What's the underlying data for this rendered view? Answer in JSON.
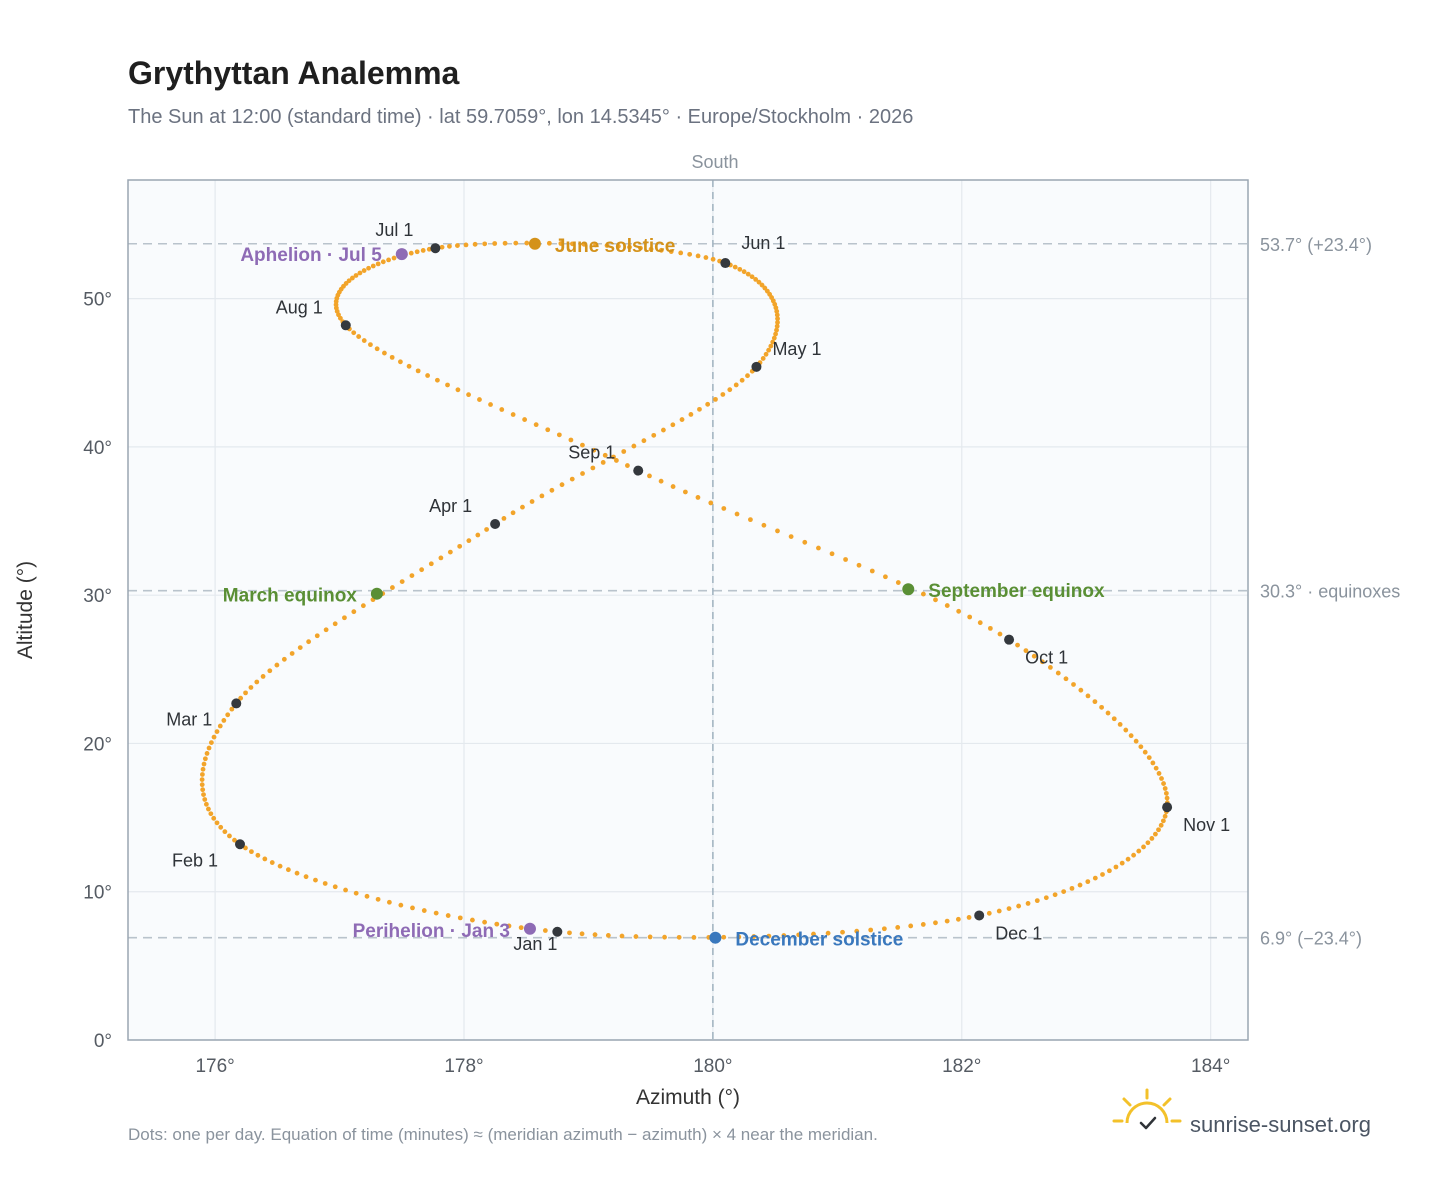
{
  "chart_data": {
    "type": "scatter",
    "title": "Grythyttan Analemma",
    "subtitle": "The Sun at 12:00 (standard time) · lat 59.7059°, lon 14.5345° · Europe/Stockholm · 2026",
    "xlabel": "Azimuth (°)",
    "ylabel": "Altitude (°)",
    "top_label": "South",
    "xlim": [
      175.3,
      184.3
    ],
    "ylim": [
      0,
      58
    ],
    "x_ticks": [
      176,
      178,
      180,
      182,
      184
    ],
    "y_ticks": [
      0,
      10,
      20,
      30,
      40,
      50
    ],
    "x_tick_labels": [
      "176°",
      "178°",
      "180°",
      "182°",
      "184°"
    ],
    "y_tick_labels": [
      "0°",
      "10°",
      "20°",
      "30°",
      "40°",
      "50°"
    ],
    "grid": true,
    "meridian_azimuth": 180,
    "reference_lines": [
      {
        "y": 53.7,
        "label": "53.7° (+23.4°)"
      },
      {
        "y": 30.3,
        "label": "30.3° · equinoxes"
      },
      {
        "y": 6.9,
        "label": "6.9° (−23.4°)"
      }
    ],
    "month_points": [
      {
        "label": "Jan 1",
        "az": 178.75,
        "alt": 7.3
      },
      {
        "label": "Feb 1",
        "az": 176.2,
        "alt": 13.2
      },
      {
        "label": "Mar 1",
        "az": 176.17,
        "alt": 22.7
      },
      {
        "label": "Apr 1",
        "az": 178.25,
        "alt": 34.8
      },
      {
        "label": "May 1",
        "az": 180.35,
        "alt": 45.4
      },
      {
        "label": "Jun 1",
        "az": 180.1,
        "alt": 52.4
      },
      {
        "label": "Jul 1",
        "az": 177.77,
        "alt": 53.4
      },
      {
        "label": "Aug 1",
        "az": 177.05,
        "alt": 48.2
      },
      {
        "label": "Sep 1",
        "az": 179.4,
        "alt": 38.4
      },
      {
        "label": "Oct 1",
        "az": 182.38,
        "alt": 27.0
      },
      {
        "label": "Nov 1",
        "az": 183.65,
        "alt": 15.7
      },
      {
        "label": "Dec 1",
        "az": 182.14,
        "alt": 8.4
      }
    ],
    "events": [
      {
        "label": "June solstice",
        "az": 178.57,
        "alt": 53.7,
        "color": "#d4921a"
      },
      {
        "label": "Aphelion · Jul 5",
        "az": 177.5,
        "alt": 53.0,
        "color": "#8e6bb5"
      },
      {
        "label": "March equinox",
        "az": 177.3,
        "alt": 30.1,
        "color": "#5a8f35"
      },
      {
        "label": "September equinox",
        "az": 181.57,
        "alt": 30.4,
        "color": "#5a8f35"
      },
      {
        "label": "Perihelion · Jan 3",
        "az": 178.53,
        "alt": 7.5,
        "color": "#8e6bb5"
      },
      {
        "label": "December solstice",
        "az": 180.02,
        "alt": 6.9,
        "color": "#3a78bd"
      }
    ],
    "daily_color": "#f2a42a"
  },
  "footnote": "Dots: one per day. Equation of time (minutes) ≈ (meridian azimuth − azimuth) × 4 near the meridian.",
  "brand": {
    "name": "sunrise-sunset.org",
    "icon": "sun-logo-icon",
    "icon_color": "#f3c12a"
  }
}
